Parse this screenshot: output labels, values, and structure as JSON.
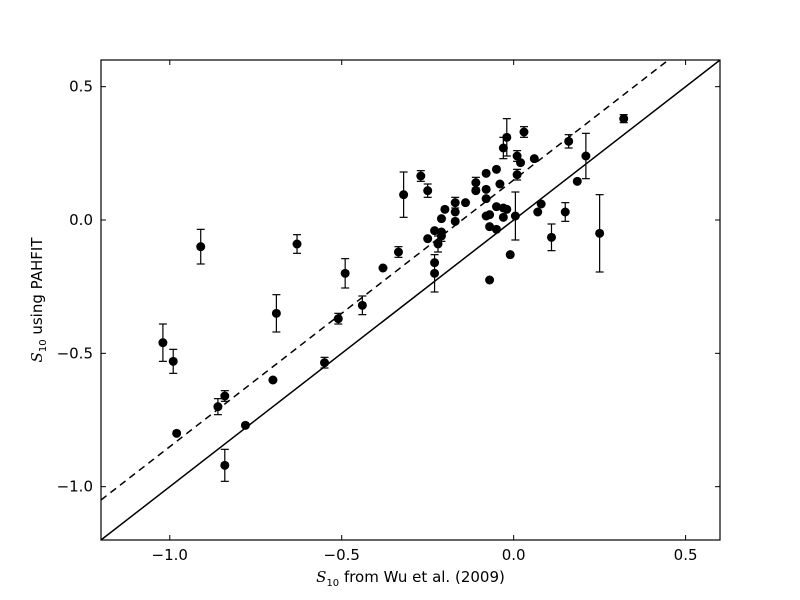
{
  "chart_data": {
    "type": "scatter",
    "title": "",
    "xlabel": {
      "symbol": "S",
      "sub": "10",
      "rest": " from Wu et al. (2009)"
    },
    "ylabel": {
      "symbol": "S",
      "sub": "10",
      "rest": " using PAHFIT"
    },
    "xlim": [
      -1.2,
      0.6
    ],
    "ylim": [
      -1.2,
      0.6
    ],
    "xticks": [
      -1.0,
      -0.5,
      0.0,
      0.5
    ],
    "xtick_labels": [
      "−1.0",
      "−0.5",
      "0.0",
      "0.5"
    ],
    "yticks": [
      -1.0,
      -0.5,
      0.0,
      0.5
    ],
    "ytick_labels": [
      "−1.0",
      "−0.5",
      "0.0",
      "0.5"
    ],
    "grid": false,
    "lines": [
      {
        "name": "",
        "style": "solid",
        "x": [
          -1.2,
          0.6
        ],
        "y": [
          -1.2,
          0.6
        ]
      },
      {
        "name": "",
        "style": "dashed",
        "x": [
          -1.2,
          0.6
        ],
        "y": [
          -1.05,
          0.75
        ]
      }
    ],
    "points": [
      {
        "x": -1.02,
        "y": -0.46,
        "err": 0.07
      },
      {
        "x": -0.99,
        "y": -0.53,
        "err": 0.045
      },
      {
        "x": -0.98,
        "y": -0.8,
        "err": 0.0
      },
      {
        "x": -0.91,
        "y": -0.1,
        "err": 0.065
      },
      {
        "x": -0.86,
        "y": -0.7,
        "err": 0.03
      },
      {
        "x": -0.84,
        "y": -0.66,
        "err": 0.02
      },
      {
        "x": -0.84,
        "y": -0.92,
        "err": 0.06
      },
      {
        "x": -0.78,
        "y": -0.77,
        "err": 0.0
      },
      {
        "x": -0.7,
        "y": -0.6,
        "err": 0.0
      },
      {
        "x": -0.69,
        "y": -0.35,
        "err": 0.07
      },
      {
        "x": -0.63,
        "y": -0.09,
        "err": 0.035
      },
      {
        "x": -0.55,
        "y": -0.535,
        "err": 0.02
      },
      {
        "x": -0.51,
        "y": -0.37,
        "err": 0.02
      },
      {
        "x": -0.49,
        "y": -0.2,
        "err": 0.055
      },
      {
        "x": -0.44,
        "y": -0.32,
        "err": 0.035
      },
      {
        "x": -0.38,
        "y": -0.18,
        "err": 0.0
      },
      {
        "x": -0.335,
        "y": -0.12,
        "err": 0.02
      },
      {
        "x": -0.32,
        "y": 0.095,
        "err": 0.085
      },
      {
        "x": -0.27,
        "y": 0.165,
        "err": 0.02
      },
      {
        "x": -0.25,
        "y": 0.11,
        "err": 0.025
      },
      {
        "x": -0.25,
        "y": -0.07,
        "err": 0.0
      },
      {
        "x": -0.23,
        "y": -0.04,
        "err": 0.0
      },
      {
        "x": -0.23,
        "y": -0.16,
        "err": 0.0
      },
      {
        "x": -0.23,
        "y": -0.2,
        "err": 0.07
      },
      {
        "x": -0.22,
        "y": -0.09,
        "err": 0.03
      },
      {
        "x": -0.21,
        "y": -0.06,
        "err": 0.02
      },
      {
        "x": -0.21,
        "y": 0.005,
        "err": 0.0
      },
      {
        "x": -0.21,
        "y": -0.045,
        "err": 0.0
      },
      {
        "x": -0.2,
        "y": 0.04,
        "err": 0.0
      },
      {
        "x": -0.17,
        "y": 0.065,
        "err": 0.02
      },
      {
        "x": -0.17,
        "y": 0.03,
        "err": 0.0
      },
      {
        "x": -0.17,
        "y": -0.005,
        "err": 0.0
      },
      {
        "x": -0.14,
        "y": 0.065,
        "err": 0.0
      },
      {
        "x": -0.11,
        "y": 0.14,
        "err": 0.02
      },
      {
        "x": -0.11,
        "y": 0.11,
        "err": 0.0
      },
      {
        "x": -0.08,
        "y": 0.175,
        "err": 0.0
      },
      {
        "x": -0.08,
        "y": 0.115,
        "err": 0.0
      },
      {
        "x": -0.08,
        "y": 0.08,
        "err": 0.0
      },
      {
        "x": -0.08,
        "y": 0.015,
        "err": 0.0
      },
      {
        "x": -0.07,
        "y": -0.025,
        "err": 0.0
      },
      {
        "x": -0.07,
        "y": 0.02,
        "err": 0.0
      },
      {
        "x": -0.07,
        "y": -0.225,
        "err": 0.0
      },
      {
        "x": -0.05,
        "y": 0.19,
        "err": 0.0
      },
      {
        "x": -0.05,
        "y": 0.05,
        "err": 0.0
      },
      {
        "x": -0.05,
        "y": -0.035,
        "err": 0.0
      },
      {
        "x": -0.04,
        "y": 0.135,
        "err": 0.0
      },
      {
        "x": -0.03,
        "y": 0.27,
        "err": 0.04
      },
      {
        "x": -0.03,
        "y": 0.045,
        "err": 0.0
      },
      {
        "x": -0.03,
        "y": 0.01,
        "err": 0.0
      },
      {
        "x": -0.02,
        "y": 0.31,
        "err": 0.07
      },
      {
        "x": -0.02,
        "y": 0.04,
        "err": 0.0
      },
      {
        "x": -0.01,
        "y": -0.13,
        "err": 0.0
      },
      {
        "x": 0.005,
        "y": 0.015,
        "err": 0.09
      },
      {
        "x": 0.01,
        "y": 0.24,
        "err": 0.02
      },
      {
        "x": 0.01,
        "y": 0.17,
        "err": 0.02
      },
      {
        "x": 0.02,
        "y": 0.215,
        "err": 0.0
      },
      {
        "x": 0.03,
        "y": 0.33,
        "err": 0.02
      },
      {
        "x": 0.06,
        "y": 0.23,
        "err": 0.0
      },
      {
        "x": 0.07,
        "y": 0.03,
        "err": 0.0
      },
      {
        "x": 0.08,
        "y": 0.06,
        "err": 0.0
      },
      {
        "x": 0.11,
        "y": -0.065,
        "err": 0.05
      },
      {
        "x": 0.15,
        "y": 0.03,
        "err": 0.035
      },
      {
        "x": 0.16,
        "y": 0.295,
        "err": 0.025
      },
      {
        "x": 0.185,
        "y": 0.145,
        "err": 0.0
      },
      {
        "x": 0.21,
        "y": 0.24,
        "err": 0.085
      },
      {
        "x": 0.25,
        "y": -0.05,
        "err": 0.145
      },
      {
        "x": 0.32,
        "y": 0.38,
        "err": 0.015
      }
    ]
  }
}
